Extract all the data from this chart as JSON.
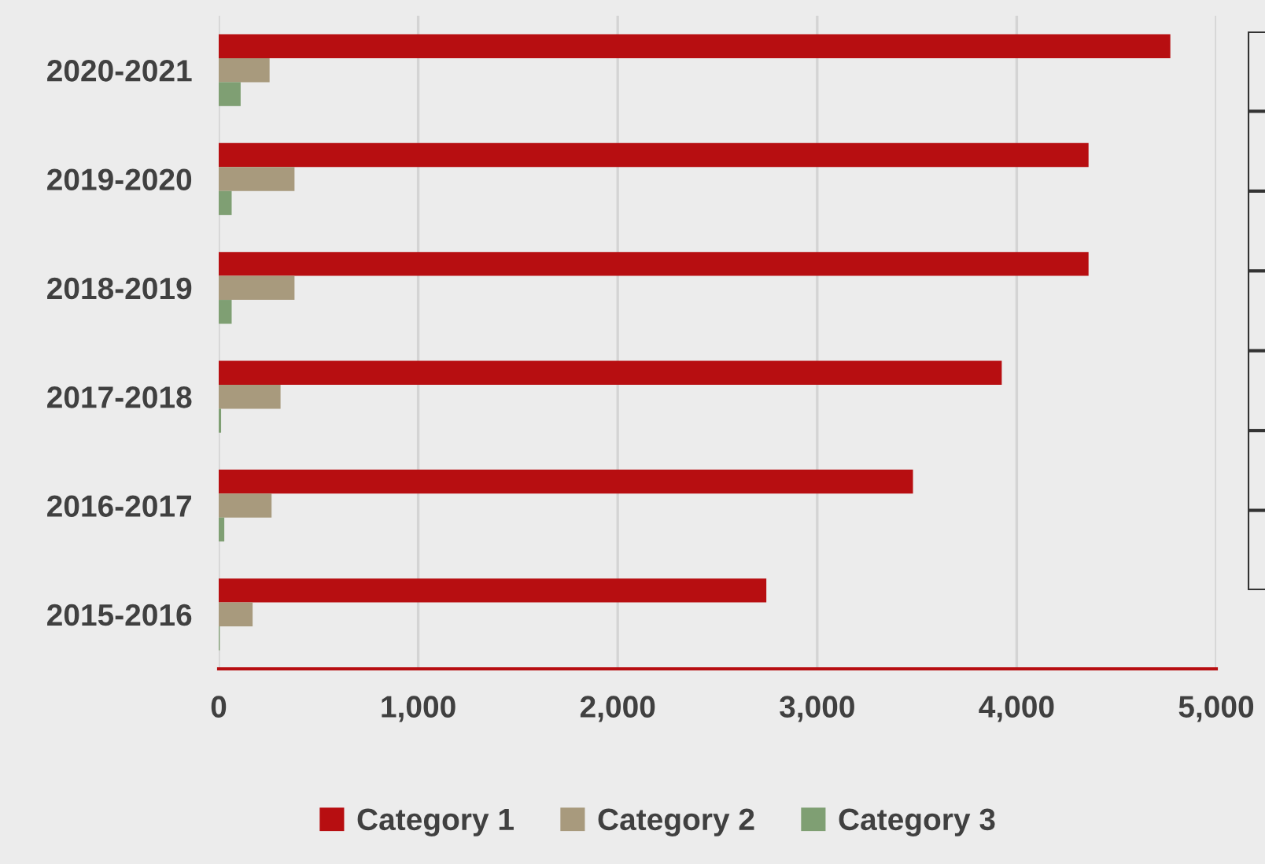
{
  "chart_data": {
    "type": "bar",
    "orientation": "horizontal",
    "categories": [
      "2020-2021",
      "2019-2020",
      "2018-2019",
      "2017-2018",
      "2016-2017",
      "2015-2016"
    ],
    "series": [
      {
        "name": "Category 1",
        "color": "#b70e11",
        "values": [
          4770,
          4360,
          4360,
          3925,
          3480,
          2745
        ]
      },
      {
        "name": "Category 2",
        "color": "#a89a7d",
        "values": [
          255,
          380,
          380,
          310,
          265,
          170
        ]
      },
      {
        "name": "Category 3",
        "color": "#7f9f73",
        "values": [
          110,
          65,
          65,
          12,
          28,
          5
        ]
      }
    ],
    "xlim": [
      0,
      5000
    ],
    "xticks": [
      0,
      {
        "value": 1000,
        "label": "1,000"
      },
      {
        "value": 2000,
        "label": "2,000"
      },
      {
        "value": 3000,
        "label": "3,000"
      },
      {
        "value": 4000,
        "label": "4,000"
      },
      {
        "value": 5000,
        "label": "5,000"
      }
    ],
    "grid": "x",
    "legend": "bottom"
  }
}
